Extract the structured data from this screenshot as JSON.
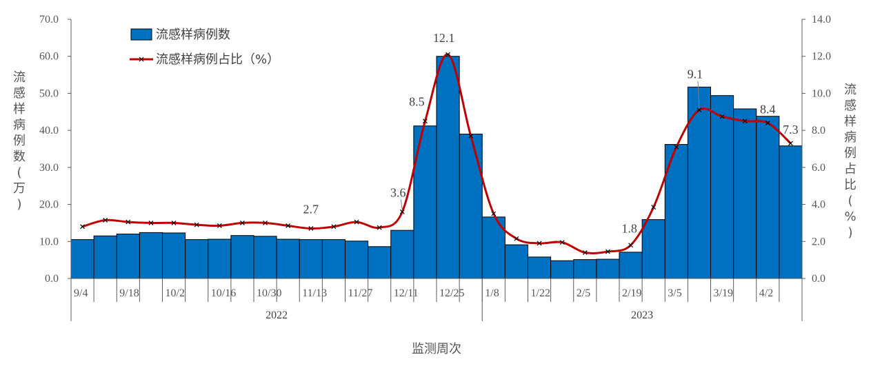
{
  "chart_data": {
    "type": "bar",
    "xlabel": "监测周次",
    "ylabel_left": "流感样病例数（万）",
    "ylabel_right": "流感样病例占比（%）",
    "ylim_left": [
      0,
      70
    ],
    "ylim_right": [
      0,
      14
    ],
    "left_ticks": [
      "0.0",
      "10.0",
      "20.0",
      "30.0",
      "40.0",
      "50.0",
      "60.0",
      "70.0"
    ],
    "right_ticks": [
      "0.0",
      "2.0",
      "4.0",
      "6.0",
      "8.0",
      "10.0",
      "12.0",
      "14.0"
    ],
    "legend_position": "top-left",
    "categories": [
      "9/4",
      "",
      "9/18",
      "",
      "10/2",
      "",
      "10/16",
      "",
      "10/30",
      "",
      "11/13",
      "",
      "11/27",
      "",
      "12/11",
      "",
      "12/25",
      "",
      "1/8",
      "",
      "1/22",
      "",
      "2/5",
      "",
      "2/19",
      "",
      "3/5",
      "",
      "3/19",
      "",
      "4/2",
      ""
    ],
    "year_groups": [
      {
        "label": "2022",
        "count": 18
      },
      {
        "label": "2023",
        "count": 14
      }
    ],
    "series": [
      {
        "name": "流感样病例数",
        "type": "bar",
        "axis": "left",
        "values": [
          10.5,
          11.5,
          12.0,
          12.4,
          12.3,
          10.5,
          10.6,
          11.6,
          11.4,
          10.6,
          10.5,
          10.5,
          10.1,
          8.6,
          13.0,
          41.2,
          60.0,
          39.0,
          16.6,
          9.1,
          5.8,
          4.8,
          5.1,
          5.2,
          7.1,
          15.9,
          36.2,
          51.7,
          49.4,
          45.8,
          43.8,
          35.8
        ]
      },
      {
        "name": "流感样病例占比（%）",
        "type": "line",
        "axis": "right",
        "values": [
          2.8,
          3.15,
          3.05,
          3.0,
          3.0,
          2.9,
          2.85,
          3.0,
          3.0,
          2.85,
          2.7,
          2.8,
          3.05,
          2.75,
          3.6,
          8.5,
          12.1,
          7.7,
          3.5,
          2.15,
          1.9,
          1.95,
          1.4,
          1.45,
          1.8,
          3.85,
          7.1,
          9.1,
          8.75,
          8.5,
          8.4,
          7.3
        ]
      }
    ],
    "annotations": [
      {
        "index": 10,
        "text": "2.7"
      },
      {
        "index": 14,
        "text": "3.6"
      },
      {
        "index": 15,
        "text": "8.5"
      },
      {
        "index": 16,
        "text": "12.1"
      },
      {
        "index": 24,
        "text": "1.8"
      },
      {
        "index": 27,
        "text": "9.1"
      },
      {
        "index": 30,
        "text": "8.4"
      },
      {
        "index": 31,
        "text": "7.3"
      }
    ],
    "colors": {
      "bar_fill": "#0070C0",
      "bar_stroke": "#000000",
      "line": "#C00000",
      "marker": "#000000",
      "axis": "#595959"
    }
  }
}
